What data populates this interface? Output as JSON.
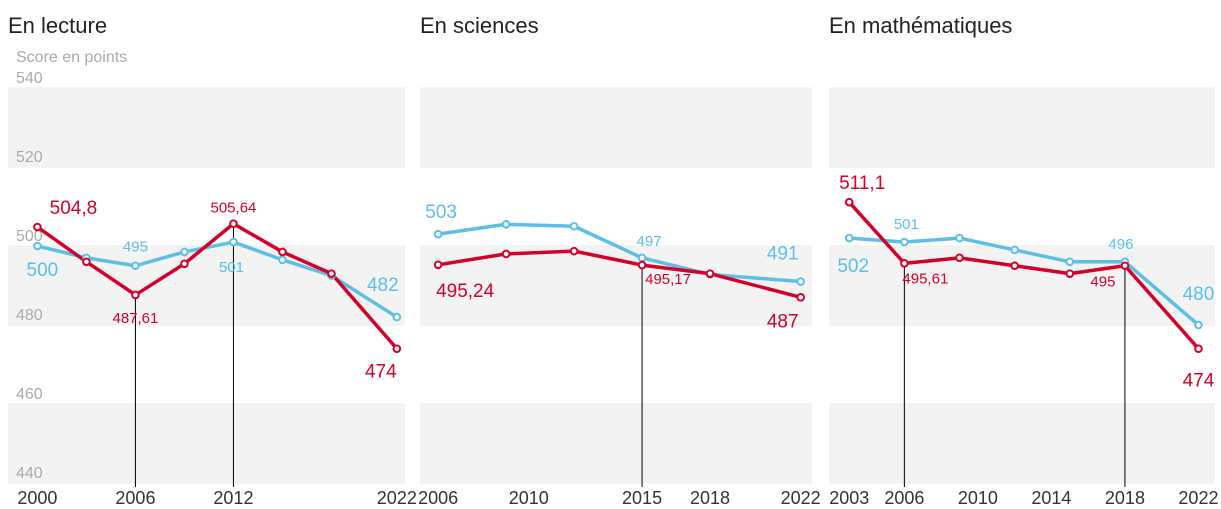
{
  "chart_data": [
    {
      "type": "line",
      "title": "En lecture",
      "y_label": "Score en points",
      "x": [
        2000,
        2003,
        2006,
        2009,
        2012,
        2015,
        2018,
        2022
      ],
      "xlim": [
        1998.2,
        2022.5
      ],
      "xticks": [
        2000,
        2006,
        2012,
        2022
      ],
      "ylim": [
        440,
        540
      ],
      "yticks": [
        440,
        460,
        480,
        500,
        520,
        540
      ],
      "series": [
        {
          "color": "#5bbfe8",
          "values": [
            500,
            497,
            495,
            498.5,
            501,
            496.5,
            492.5,
            482
          ],
          "value_labels": [
            "500",
            null,
            "495",
            null,
            "501",
            null,
            null,
            "482"
          ]
        },
        {
          "color": "#d4002a",
          "values": [
            504.8,
            496,
            487.61,
            495.5,
            505.64,
            498.5,
            493,
            474
          ],
          "value_labels": [
            "504,8",
            null,
            "487,61",
            null,
            "505,64",
            null,
            null,
            "474"
          ]
        }
      ]
    },
    {
      "type": "line",
      "title": "En sciences",
      "x": [
        2006,
        2009,
        2012,
        2015,
        2018,
        2022
      ],
      "xlim": [
        2005.2,
        2022.5
      ],
      "xticks": [
        2006,
        2010,
        2015,
        2018,
        2022
      ],
      "ylim": [
        440,
        540
      ],
      "yticks": [
        440,
        460,
        480,
        500,
        520,
        540
      ],
      "series": [
        {
          "color": "#5bbfe8",
          "values": [
            503,
            505.5,
            505,
            497,
            492.8,
            491
          ],
          "value_labels": [
            "503",
            null,
            null,
            "497",
            null,
            "491"
          ]
        },
        {
          "color": "#d4002a",
          "values": [
            495.24,
            498,
            498.7,
            495.17,
            493,
            487
          ],
          "value_labels": [
            "495,24",
            null,
            null,
            "495,17",
            null,
            "487"
          ]
        }
      ]
    },
    {
      "type": "line",
      "title": "En mathématiques",
      "x": [
        2003,
        2006,
        2009,
        2012,
        2015,
        2018,
        2022
      ],
      "xlim": [
        2001.9,
        2022.9
      ],
      "xticks": [
        2003,
        2006,
        2010,
        2014,
        2018,
        2022
      ],
      "ylim": [
        440,
        540
      ],
      "yticks": [
        440,
        460,
        480,
        500,
        520,
        540
      ],
      "series": [
        {
          "color": "#5bbfe8",
          "values": [
            502,
            501,
            502,
            499,
            496,
            496,
            480
          ],
          "value_labels": [
            "502",
            "501",
            null,
            null,
            null,
            "496",
            "480"
          ]
        },
        {
          "color": "#d4002a",
          "values": [
            511.1,
            495.61,
            497,
            495,
            493,
            495,
            474
          ],
          "value_labels": [
            "511,1",
            "495,61",
            null,
            null,
            null,
            "495",
            "474"
          ]
        }
      ]
    }
  ]
}
